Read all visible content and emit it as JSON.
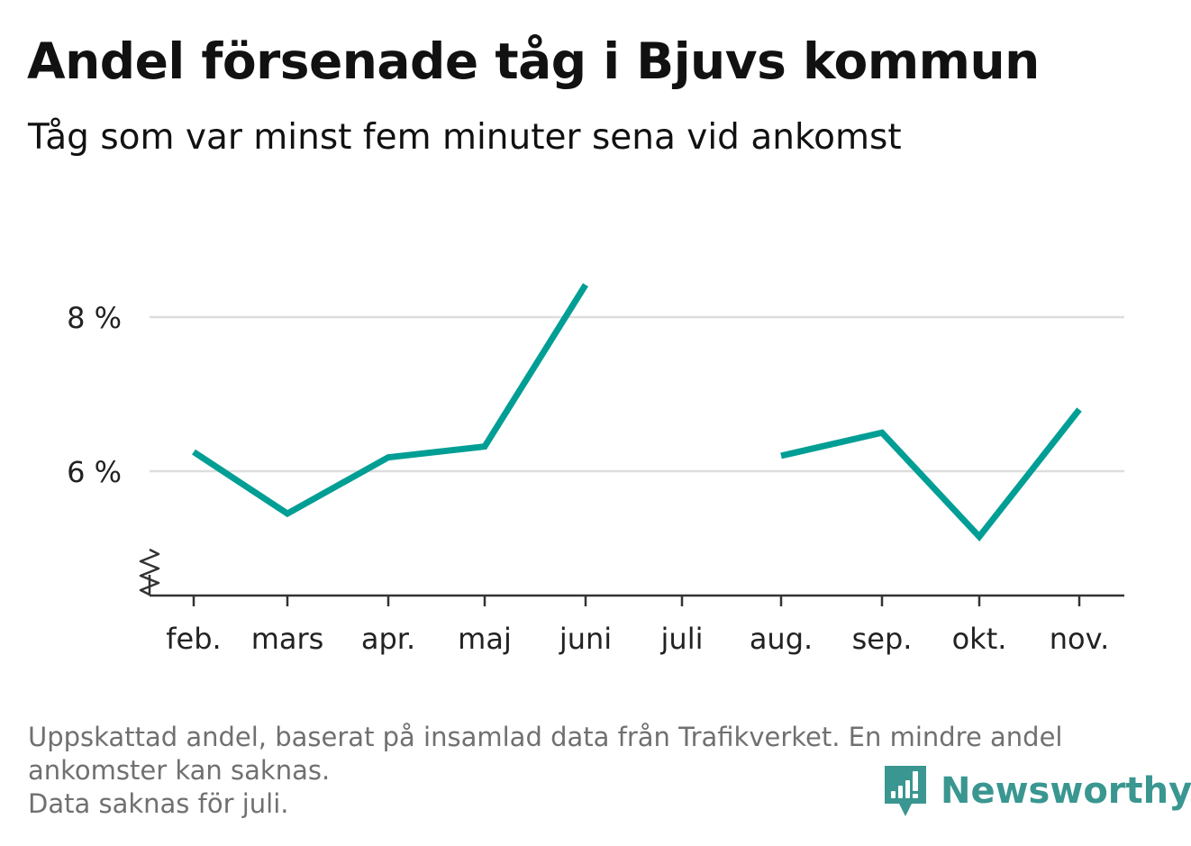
{
  "header": {
    "title": "Andel försenade tåg i Bjuvs kommun",
    "subtitle": "Tåg som var minst fem minuter sena vid ankomst"
  },
  "chart_data": {
    "type": "line",
    "title": "Andel försenade tåg i Bjuvs kommun",
    "subtitle": "Tåg som var minst fem minuter sena vid ankomst",
    "xlabel": "",
    "ylabel": "",
    "categories": [
      "feb.",
      "mars",
      "apr.",
      "maj",
      "juni",
      "juli",
      "aug.",
      "sep.",
      "okt.",
      "nov."
    ],
    "series": [
      {
        "values": [
          6.25,
          5.45,
          6.18,
          6.32,
          8.42,
          null,
          6.2,
          6.5,
          5.15,
          6.8
        ]
      }
    ],
    "y_ticks": [
      6,
      8
    ],
    "y_tick_labels": [
      "6 %",
      "8 %"
    ],
    "ylim": [
      4.4,
      9.2
    ],
    "axis_break": true,
    "grid": "horizontal",
    "legend": "none",
    "colors": {
      "line": "#009e94",
      "grid": "#dddddd",
      "axis": "#333333"
    }
  },
  "footer": {
    "note_line_1": "Uppskattad andel, baserat på insamlad data från Trafikverket. En mindre andel",
    "note_line_2": "ankomster kan saknas.",
    "note_line_3": "Data saknas för juli."
  },
  "brand": {
    "name": "Newsworthy",
    "color": "#3a9690",
    "icon": "bar-chart-speech-bubble-icon"
  }
}
